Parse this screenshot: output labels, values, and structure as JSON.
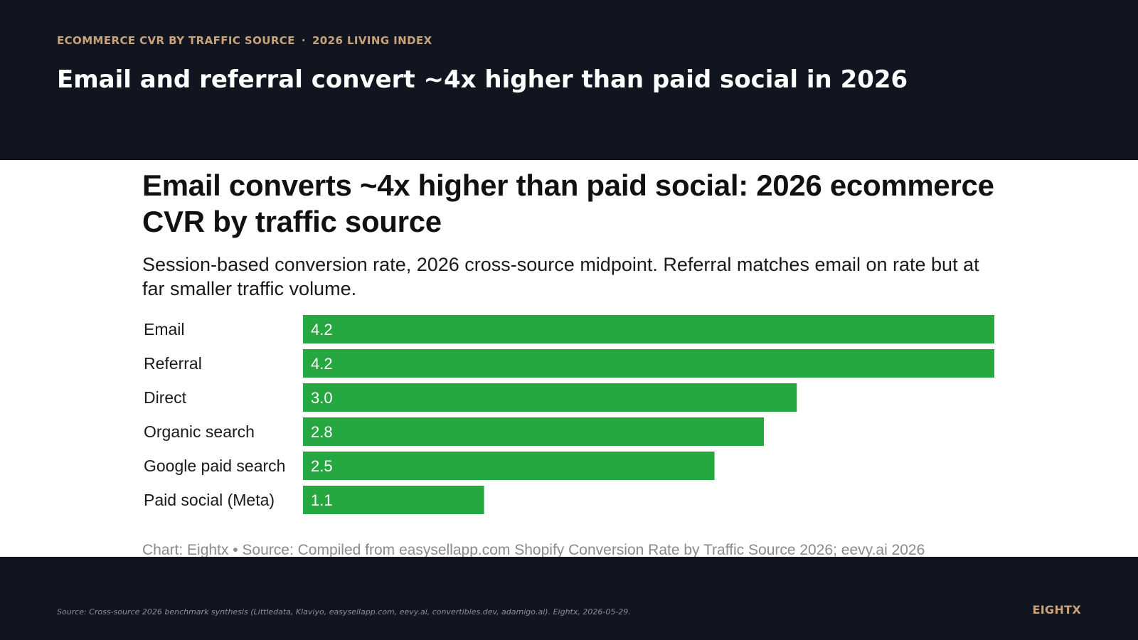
{
  "header": {
    "kicker_left": "ECOMMERCE CVR BY TRAFFIC SOURCE",
    "kicker_sep": "·",
    "kicker_right": "2026 LIVING INDEX",
    "headline": "Email and referral convert ~4x higher than paid social in 2026"
  },
  "chart_data": {
    "type": "bar",
    "orientation": "horizontal",
    "title": "Email converts ~4x higher than paid social: 2026 ecommerce CVR by traffic source",
    "subtitle": "Session-based conversion rate, 2026 cross-source midpoint. Referral matches email on rate but at far smaller traffic volume.",
    "categories": [
      "Email",
      "Referral",
      "Direct",
      "Organic search",
      "Google paid search",
      "Paid social (Meta)"
    ],
    "values": [
      4.2,
      4.2,
      3.0,
      2.8,
      2.5,
      1.1
    ],
    "value_labels": [
      "4.2",
      "4.2",
      "3.0",
      "2.8",
      "2.5",
      "1.1"
    ],
    "xlim": [
      0,
      4.2
    ],
    "bar_color": "#24a83f",
    "value_label_color": "#ffffff",
    "grid": false,
    "legend": "none",
    "credit": "Chart: Eightx • Source: Compiled from easysellapp.com Shopify Conversion Rate by Traffic Source 2026; eevy.ai 2026"
  },
  "footer": {
    "source": "Source: Cross-source 2026 benchmark synthesis (Littledata, Klaviyo, easysellapp.com, eevy.ai, convertibles.dev, adamigo.ai). Eightx, 2026-05-29.",
    "brand": "EIGHTX"
  },
  "colors": {
    "background_dark": "#111520",
    "accent": "#c9a27a",
    "bar": "#24a83f"
  }
}
